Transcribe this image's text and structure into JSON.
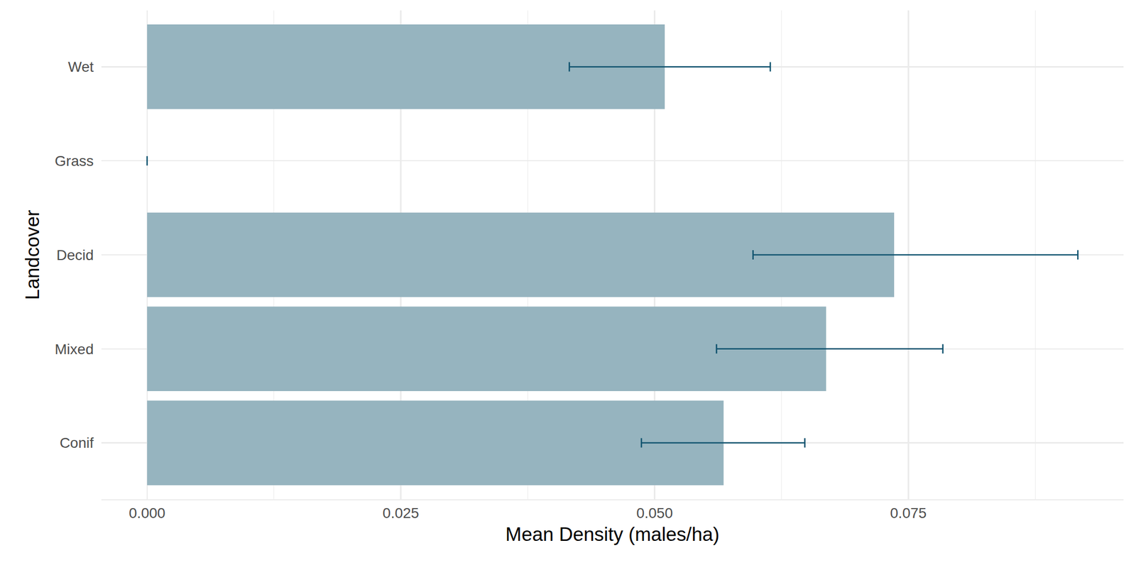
{
  "chart_data": {
    "type": "bar",
    "orientation": "horizontal",
    "x_label": "Mean Density (males/ha)",
    "y_label": "Landcover",
    "categories": [
      "Conif",
      "Mixed",
      "Decid",
      "Grass",
      "Wet"
    ],
    "values": [
      0.0568,
      0.0669,
      0.0736,
      0,
      0.051
    ],
    "error_lower": [
      0.0487,
      0.0561,
      0.0597,
      0,
      0.0416
    ],
    "error_upper": [
      0.0648,
      0.0784,
      0.0917,
      0,
      0.0614
    ],
    "color": "#96b4bf",
    "error_color": "#10536f",
    "xlim": [
      -0.0045,
      0.0962
    ],
    "xticks": [
      {
        "value": 0,
        "label": "0.000"
      },
      {
        "value": 0.025,
        "label": "0.025"
      },
      {
        "value": 0.05,
        "label": "0.050"
      },
      {
        "value": 0.075,
        "label": "0.075"
      }
    ],
    "grid": true
  }
}
